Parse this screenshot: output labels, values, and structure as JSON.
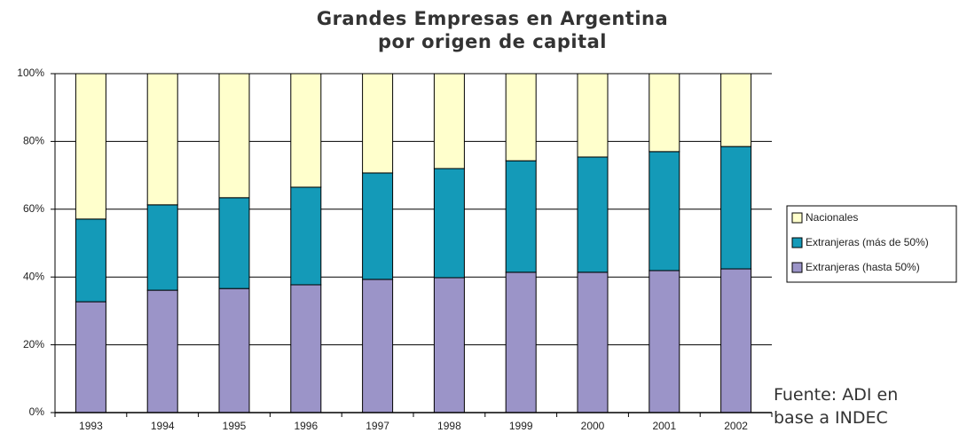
{
  "chart_data": {
    "type": "stacked_bar",
    "title": "Grandes Empresas en Argentina\npor origen de capital",
    "annotation": "Fuente: ADI en\nbase a INDEC",
    "categories": [
      "1993",
      "1994",
      "1995",
      "1996",
      "1997",
      "1998",
      "1999",
      "2000",
      "2001",
      "2002"
    ],
    "series": [
      {
        "name": "Extranjeras (hasta 50%)",
        "color": "#9b94c8",
        "values": [
          32.7,
          36.1,
          36.6,
          37.7,
          39.3,
          39.8,
          41.4,
          41.4,
          41.9,
          42.4
        ]
      },
      {
        "name": "Extranjeras (más de 50%)",
        "color": "#149ab8",
        "values": [
          24.4,
          25.2,
          26.8,
          28.8,
          31.4,
          32.2,
          32.9,
          34.0,
          35.1,
          36.1
        ]
      },
      {
        "name": "Nacionales",
        "color": "#ffffcc",
        "values": [
          42.9,
          38.7,
          36.6,
          33.5,
          29.3,
          28.0,
          25.7,
          24.6,
          23.0,
          21.5
        ]
      }
    ],
    "ylim": [
      0,
      100
    ],
    "yticks": [
      {
        "value": 0,
        "label": "0%"
      },
      {
        "value": 20,
        "label": "20%"
      },
      {
        "value": 40,
        "label": "40%"
      },
      {
        "value": 60,
        "label": "60%"
      },
      {
        "value": 80,
        "label": "80%"
      },
      {
        "value": 100,
        "label": "100%"
      }
    ],
    "grid": true
  }
}
